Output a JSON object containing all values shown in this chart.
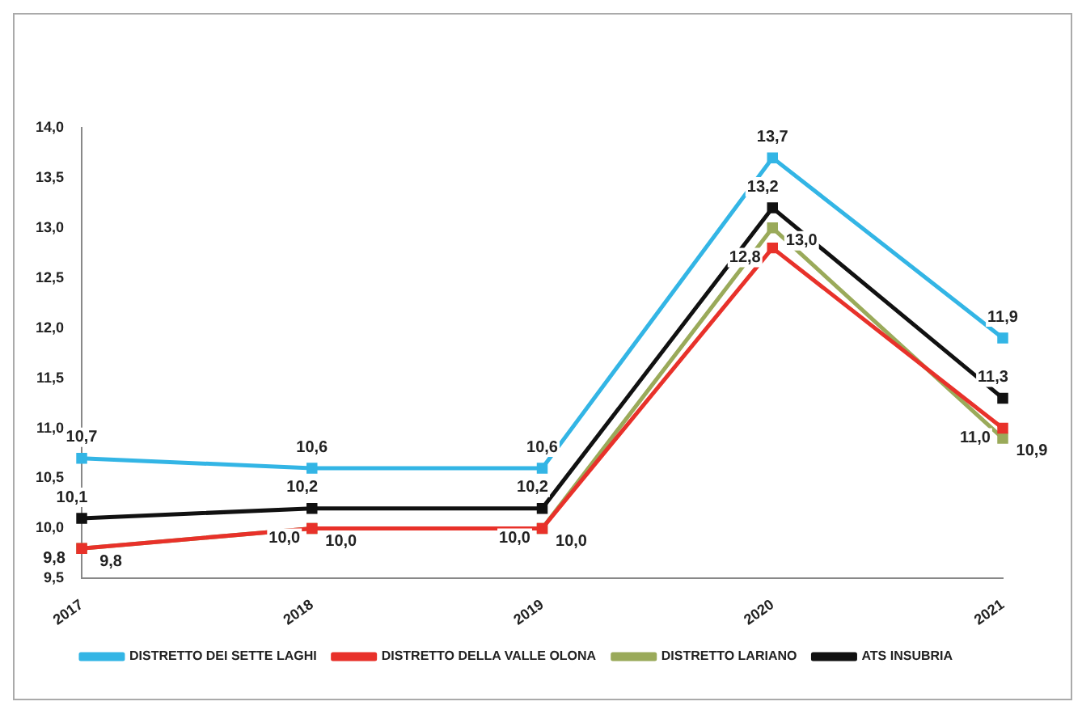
{
  "chart_data": {
    "type": "line",
    "categories": [
      "2017",
      "2018",
      "2019",
      "2020",
      "2021"
    ],
    "ylim": [
      9.5,
      14
    ],
    "yticks": [
      {
        "value": 9.5,
        "label": "9,5"
      },
      {
        "value": 10,
        "label": "10,0"
      },
      {
        "value": 10.5,
        "label": "10,5"
      },
      {
        "value": 11,
        "label": "11,0"
      },
      {
        "value": 11.5,
        "label": "11,5"
      },
      {
        "value": 12,
        "label": "12,0"
      },
      {
        "value": 12.5,
        "label": "12,5"
      },
      {
        "value": 13,
        "label": "13,0"
      },
      {
        "value": 13.5,
        "label": "13,5"
      },
      {
        "value": 14,
        "label": "14,0"
      }
    ],
    "series": [
      {
        "name": "DISTRETTO DEI SETTE LAGHI",
        "color": "#33b5e5",
        "values": [
          10.7,
          10.6,
          10.6,
          13.7,
          11.9
        ],
        "value_labels": [
          "10,7",
          "10,6",
          "10,6",
          "13,7",
          "11,9"
        ]
      },
      {
        "name": "DISTRETTO DELLA VALLE OLONA",
        "color": "#e8312a",
        "values": [
          9.8,
          10.0,
          10.0,
          12.8,
          11.0
        ],
        "value_labels": [
          "9,8",
          "10,0",
          "10,0",
          "12,8",
          "11,0"
        ]
      },
      {
        "name": "DISTRETTO LARIANO",
        "color": "#9aaa5a",
        "values": [
          9.8,
          10.0,
          10.0,
          13.0,
          10.9
        ],
        "value_labels": [
          "9,8",
          "10,0",
          "10,0",
          "13,0",
          "10,9"
        ]
      },
      {
        "name": "ATS INSUBRIA",
        "color": "#111111",
        "values": [
          10.1,
          10.2,
          10.2,
          13.2,
          11.3
        ],
        "value_labels": [
          "10,1",
          "10,2",
          "10,2",
          "13,2",
          "11,3"
        ]
      }
    ],
    "marker": "square",
    "grid": false,
    "legend": "bottom"
  }
}
